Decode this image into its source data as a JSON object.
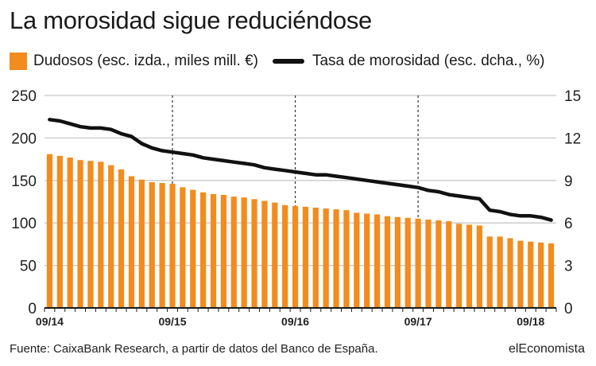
{
  "header": {
    "title": "La morosidad sigue reduciéndose"
  },
  "legend": {
    "bars_label": "Dudosos (esc. izda., miles mill. €)",
    "line_label": "Tasa de morosidad (esc. dcha., %)"
  },
  "footer": {
    "source": "Fuente: CaixaBank Research, a partir de datos del Banco de España.",
    "brand": "elEconomista"
  },
  "colors": {
    "bars": "#f28c1e",
    "line": "#111111",
    "grid": "#c8c8c8",
    "axis": "#1a1a1a"
  },
  "chart_data": {
    "type": "bar",
    "title": "La morosidad sigue reduciéndose",
    "x_tick_labels": [
      "09/14",
      "09/15",
      "09/16",
      "09/17",
      "09/18"
    ],
    "x_tick_month_index": [
      0,
      12,
      24,
      36,
      47
    ],
    "dashed_vertical_month_index": [
      12,
      24,
      36
    ],
    "series": [
      {
        "name": "Dudosos (esc. izda., miles mill. €)",
        "type": "bar",
        "axis": "left",
        "values": [
          181,
          179,
          177,
          174,
          173,
          172,
          168,
          163,
          155,
          151,
          148,
          147,
          146,
          142,
          139,
          136,
          134,
          133,
          131,
          130,
          128,
          126,
          124,
          121,
          120,
          119,
          118,
          117,
          116,
          115,
          112,
          111,
          110,
          108,
          107,
          106,
          105,
          104,
          103,
          102,
          99,
          98,
          97,
          84,
          84,
          82,
          79,
          78,
          77,
          76
        ]
      },
      {
        "name": "Tasa de morosidad (esc. dcha., %)",
        "type": "line",
        "axis": "right",
        "values": [
          13.3,
          13.2,
          13.0,
          12.8,
          12.7,
          12.7,
          12.6,
          12.3,
          12.1,
          11.6,
          11.3,
          11.1,
          11.0,
          10.9,
          10.8,
          10.6,
          10.5,
          10.4,
          10.3,
          10.2,
          10.1,
          9.9,
          9.8,
          9.7,
          9.6,
          9.5,
          9.4,
          9.4,
          9.3,
          9.2,
          9.1,
          9.0,
          8.9,
          8.8,
          8.7,
          8.6,
          8.5,
          8.3,
          8.2,
          8.0,
          7.9,
          7.8,
          7.7,
          6.9,
          6.8,
          6.6,
          6.5,
          6.5,
          6.4,
          6.2
        ]
      }
    ],
    "left_axis": {
      "ylim": [
        0,
        250
      ],
      "ticks": [
        0,
        50,
        100,
        150,
        200,
        250
      ]
    },
    "right_axis": {
      "ylim": [
        0,
        15
      ],
      "ticks": [
        0,
        3,
        6,
        9,
        12,
        15
      ]
    },
    "grid": true,
    "legend_position": "top"
  }
}
